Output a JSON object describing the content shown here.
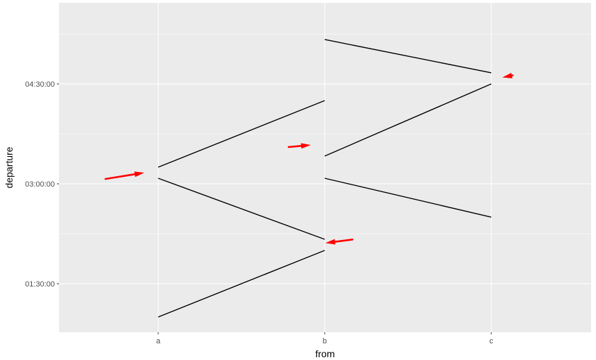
{
  "chart_data": {
    "type": "line",
    "title": "",
    "xlabel": "from",
    "ylabel": "departure",
    "categories": [
      "a",
      "b",
      "c"
    ],
    "y_ticks": [
      {
        "value": 5400,
        "label": "01:30:00"
      },
      {
        "value": 10800,
        "label": "03:00:00"
      },
      {
        "value": 16200,
        "label": "04:30:00"
      }
    ],
    "ylim_seconds": [
      3600,
      19000
    ],
    "grid": true,
    "legend": "none",
    "segments": [
      {
        "from": {
          "x": "a",
          "y": 11700
        },
        "to": {
          "x": "b",
          "y": 15300
        }
      },
      {
        "from": {
          "x": "a",
          "y": 11100
        },
        "to": {
          "x": "b",
          "y": 7800
        }
      },
      {
        "from": {
          "x": "a",
          "y": 3600
        },
        "to": {
          "x": "b",
          "y": 7200
        }
      },
      {
        "from": {
          "x": "b",
          "y": 18600
        },
        "to": {
          "x": "c",
          "y": 16800
        }
      },
      {
        "from": {
          "x": "b",
          "y": 12300
        },
        "to": {
          "x": "c",
          "y": 16200
        }
      },
      {
        "from": {
          "x": "b",
          "y": 11100
        },
        "to": {
          "x": "c",
          "y": 9000
        }
      }
    ],
    "annotations": {
      "type": "arrow",
      "color": "#ff0000",
      "targets": [
        {
          "x": "a",
          "y": 11400
        },
        {
          "x": "b",
          "y": 12900
        },
        {
          "x": "b",
          "y": 7600
        },
        {
          "x": "c",
          "y": 16550
        }
      ]
    },
    "colors": {
      "panel": "#ebebeb",
      "grid_major": "#ffffff",
      "line": "#000000",
      "arrow": "#ff0000",
      "tick_label": "#4d4d4d",
      "tick_mark": "#333333"
    }
  }
}
